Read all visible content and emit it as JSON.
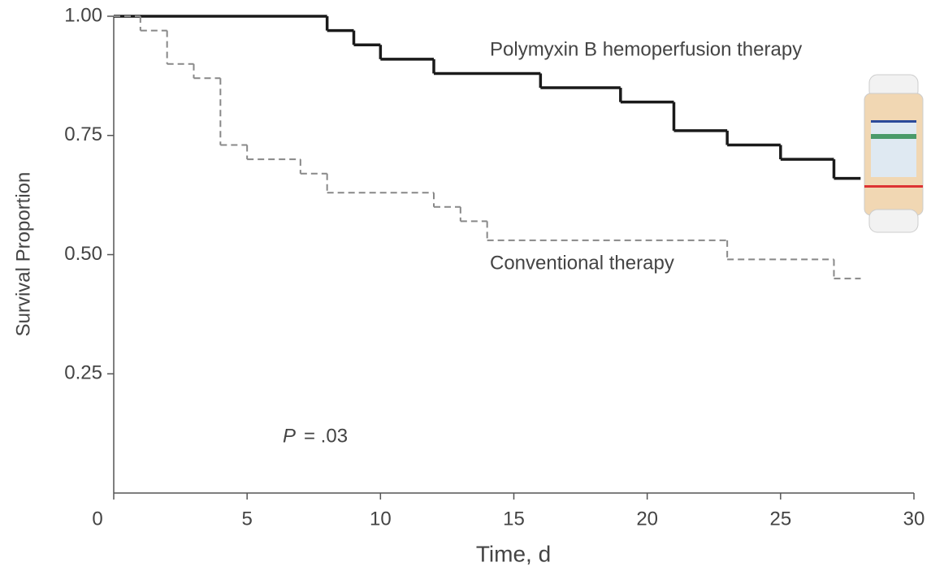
{
  "chart_data": {
    "type": "step",
    "xlabel": "Time, d",
    "ylabel": "Survival Proportion",
    "xlim": [
      0,
      30
    ],
    "xticks": [
      0,
      5,
      10,
      15,
      20,
      25,
      30
    ],
    "ylim": [
      0,
      1
    ],
    "yticks": [
      0.25,
      {
        "value": 0.5,
        "label": "0.50"
      },
      0.75,
      {
        "value": 1,
        "label": "1.00"
      }
    ],
    "series": [
      {
        "name": "Polymyxin B hemoperfusion therapy",
        "color": "#1a1a1a",
        "dash": false,
        "x": [
          0,
          8,
          9,
          10,
          12,
          16,
          19,
          21,
          23,
          25,
          27,
          28
        ],
        "values": [
          1,
          0.97,
          0.94,
          0.91,
          0.88,
          0.85,
          0.82,
          0.76,
          0.73,
          0.7,
          0.66,
          0.66
        ]
      },
      {
        "name": "Conventional therapy",
        "color": "#888888",
        "dash": true,
        "x": [
          0,
          1,
          2,
          3,
          4,
          5,
          7,
          8,
          12,
          13,
          14,
          23,
          27,
          28
        ],
        "values": [
          1,
          0.97,
          0.9,
          0.87,
          0.73,
          0.7,
          0.67,
          0.63,
          0.6,
          0.57,
          0.53,
          0.49,
          0.45,
          0.45
        ]
      }
    ],
    "annotations": {
      "p_symbol": "P",
      "p_value": "= .03"
    }
  }
}
